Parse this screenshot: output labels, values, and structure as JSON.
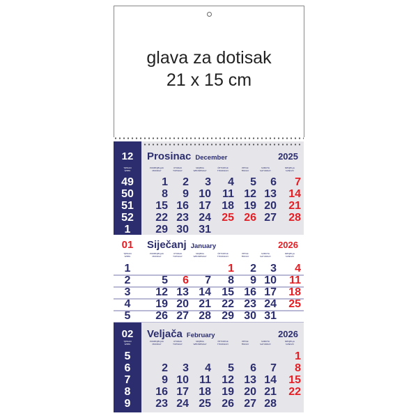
{
  "header": {
    "line1": "glava za dotisak",
    "line2": "21 x 15 cm"
  },
  "colors": {
    "navy": "#2b2d6e",
    "red": "#e31e24",
    "grey": "#e6e6ea"
  },
  "week_label": [
    "TJEDAN",
    "WEEK"
  ],
  "weekdays": [
    [
      "PONEDJELJAK",
      "MONDAY"
    ],
    [
      "UTORAK",
      "TUESDAY"
    ],
    [
      "SRIJEDA",
      "WEDNESDAY"
    ],
    [
      "ČETVRTAK",
      "THURSDAY"
    ],
    [
      "PETAK",
      "FRIDAY"
    ],
    [
      "SUBOTA",
      "SATURDAY"
    ],
    [
      "NEDJELJA",
      "SUNDAY"
    ]
  ],
  "months": [
    {
      "number": "12",
      "name_hr": "Prosinac",
      "name_en": "December",
      "year": "2025",
      "year_red": false,
      "weeks": [
        "49",
        "50",
        "51",
        "52",
        "1"
      ],
      "days": [
        [
          "1",
          "2",
          "3",
          "4",
          "5",
          "6",
          "7"
        ],
        [
          "8",
          "9",
          "10",
          "11",
          "12",
          "13",
          "14"
        ],
        [
          "15",
          "16",
          "17",
          "18",
          "19",
          "20",
          "21"
        ],
        [
          "22",
          "23",
          "24",
          "25",
          "26",
          "27",
          "28"
        ],
        [
          "29",
          "30",
          "31",
          "",
          "",
          "",
          ""
        ]
      ],
      "red_days": [
        "7",
        "14",
        "21",
        "25",
        "26",
        "28"
      ]
    },
    {
      "number": "01",
      "name_hr": "Siječanj",
      "name_en": "January",
      "year": "2026",
      "year_red": true,
      "weeks": [
        "1",
        "2",
        "3",
        "4",
        "5"
      ],
      "days": [
        [
          "",
          "",
          "",
          "1",
          "2",
          "3",
          "4"
        ],
        [
          "5",
          "6",
          "7",
          "8",
          "9",
          "10",
          "11"
        ],
        [
          "12",
          "13",
          "14",
          "15",
          "16",
          "17",
          "18"
        ],
        [
          "19",
          "20",
          "21",
          "22",
          "23",
          "24",
          "25"
        ],
        [
          "26",
          "27",
          "28",
          "29",
          "30",
          "31",
          ""
        ]
      ],
      "red_days": [
        "1",
        "4",
        "6",
        "11",
        "18",
        "25"
      ]
    },
    {
      "number": "02",
      "name_hr": "Veljača",
      "name_en": "February",
      "year": "2026",
      "year_red": false,
      "weeks": [
        "5",
        "6",
        "7",
        "8",
        "9"
      ],
      "days": [
        [
          "",
          "",
          "",
          "",
          "",
          "",
          "1"
        ],
        [
          "2",
          "3",
          "4",
          "5",
          "6",
          "7",
          "8"
        ],
        [
          "9",
          "10",
          "11",
          "12",
          "13",
          "14",
          "15"
        ],
        [
          "16",
          "17",
          "18",
          "19",
          "20",
          "21",
          "22"
        ],
        [
          "23",
          "24",
          "25",
          "26",
          "27",
          "28",
          ""
        ]
      ],
      "red_days": [
        "1",
        "8",
        "15",
        "22"
      ]
    }
  ]
}
